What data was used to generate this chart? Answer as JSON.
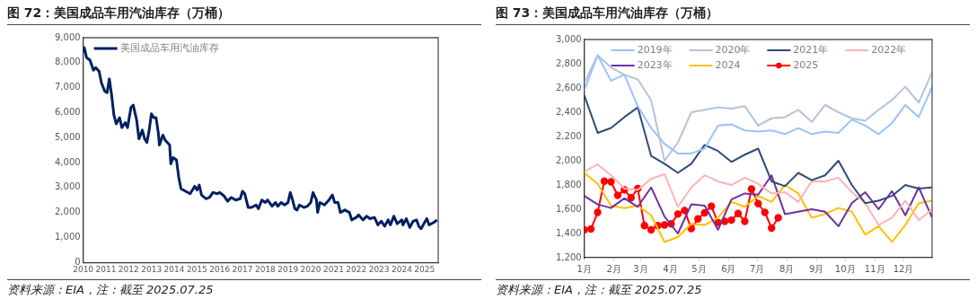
{
  "chart_data": [
    {
      "type": "line",
      "title": "图 72：美国成品车用汽油库存（万桶）",
      "annotations": [
        "资料来源：EIA，注：截至 2025.07.25"
      ],
      "legend": "top left",
      "xlim": [
        2010,
        2025.6
      ],
      "xticks": [
        2010,
        2011,
        2012,
        2013,
        2014,
        2015,
        2016,
        2017,
        2018,
        2019,
        2020,
        2021,
        2022,
        2023,
        2024,
        2025
      ],
      "ylim": [
        0,
        9000
      ],
      "yticks": [
        0,
        {
          "value": 1000,
          "label": "1,000"
        },
        {
          "value": 2000,
          "label": "2,000"
        },
        {
          "value": 3000,
          "label": "3,000"
        },
        {
          "value": 4000,
          "label": "4,000"
        },
        {
          "value": 5000,
          "label": "5,000"
        },
        {
          "value": 6000,
          "label": "6,000"
        },
        {
          "value": 7000,
          "label": "7,000"
        },
        {
          "value": 8000,
          "label": "8,000"
        },
        {
          "value": 9000,
          "label": "9,000"
        }
      ],
      "x": [
        2010.0,
        2010.05,
        2010.15,
        2010.3,
        2010.45,
        2010.55,
        2010.7,
        2010.8,
        2010.95,
        2011.05,
        2011.15,
        2011.25,
        2011.35,
        2011.45,
        2011.6,
        2011.7,
        2011.85,
        2011.95,
        2012.1,
        2012.2,
        2012.35,
        2012.45,
        2012.6,
        2012.7,
        2012.8,
        2012.9,
        2013.0,
        2013.1,
        2013.2,
        2013.3,
        2013.35,
        2013.5,
        2013.6,
        2013.7,
        2013.8,
        2013.85,
        2013.95,
        2014.1,
        2014.2,
        2014.3,
        2014.5,
        2014.7,
        2014.9,
        2015.0,
        2015.1,
        2015.2,
        2015.4,
        2015.55,
        2015.7,
        2015.9,
        2016.0,
        2016.2,
        2016.35,
        2016.5,
        2016.7,
        2016.9,
        2017.0,
        2017.1,
        2017.25,
        2017.4,
        2017.6,
        2017.7,
        2017.85,
        2018.0,
        2018.1,
        2018.3,
        2018.45,
        2018.55,
        2018.7,
        2018.85,
        2019.0,
        2019.1,
        2019.2,
        2019.3,
        2019.4,
        2019.5,
        2019.7,
        2019.85,
        2020.0,
        2020.1,
        2020.25,
        2020.3,
        2020.4,
        2020.6,
        2020.8,
        2020.95,
        2021.05,
        2021.2,
        2021.3,
        2021.5,
        2021.7,
        2021.8,
        2022.0,
        2022.1,
        2022.3,
        2022.45,
        2022.6,
        2022.8,
        2022.95,
        2023.1,
        2023.25,
        2023.4,
        2023.5,
        2023.65,
        2023.8,
        2024.0,
        2024.05,
        2024.2,
        2024.35,
        2024.5,
        2024.65,
        2024.75,
        2024.85,
        2025.0,
        2025.1,
        2025.2,
        2025.4,
        2025.55
      ],
      "series": [
        {
          "name": "美国成品车用汽油库存",
          "color": "#002060",
          "values": [
            8400,
            8600,
            8200,
            8100,
            7700,
            7800,
            7650,
            7200,
            6850,
            6800,
            7350,
            6700,
            5900,
            5550,
            5800,
            5400,
            5600,
            5400,
            6200,
            6300,
            5700,
            4950,
            5300,
            4950,
            4800,
            5300,
            5950,
            5800,
            5800,
            5200,
            4700,
            5100,
            4900,
            4800,
            4700,
            3950,
            4200,
            4100,
            3400,
            2950,
            2850,
            2750,
            3050,
            2900,
            3100,
            2700,
            2550,
            2600,
            2800,
            2750,
            2800,
            2650,
            2450,
            2600,
            2500,
            2550,
            2850,
            2750,
            2200,
            2200,
            2300,
            2150,
            2500,
            2400,
            2500,
            2250,
            2400,
            2250,
            2400,
            2300,
            2400,
            2800,
            2500,
            2150,
            2100,
            2300,
            2200,
            2250,
            2400,
            2800,
            2500,
            2000,
            2400,
            2300,
            2500,
            2700,
            2400,
            2400,
            2000,
            2100,
            2000,
            1700,
            1800,
            1900,
            1700,
            1850,
            1750,
            1800,
            1500,
            1650,
            1450,
            1700,
            1500,
            1850,
            1550,
            1700,
            1500,
            1750,
            1400,
            1650,
            1700,
            1450,
            1350,
            1600,
            1750,
            1500,
            1600,
            1700
          ]
        }
      ]
    },
    {
      "type": "line",
      "title": "图 73：美国成品车用汽油库存（万桶）",
      "annotations": [
        "资料来源：EIA，注：截至 2025.07.25"
      ],
      "legend": "top",
      "xlim": [
        "--01-01",
        "--12-31"
      ],
      "xticks": [
        {
          "value": "--01-01",
          "label": "1月"
        },
        {
          "value": "--02-01",
          "label": "2月"
        },
        {
          "value": "--03-01",
          "label": "3月"
        },
        {
          "value": "--04-01",
          "label": "4月"
        },
        {
          "value": "--05-01",
          "label": "5月"
        },
        {
          "value": "--06-01",
          "label": "6月"
        },
        {
          "value": "--07-01",
          "label": "7月"
        },
        {
          "value": "--08-01",
          "label": "8月"
        },
        {
          "value": "--09-01",
          "label": "9月"
        },
        {
          "value": "--10-01",
          "label": "10月"
        },
        {
          "value": "--11-01",
          "label": "11月"
        },
        {
          "value": "--12-01",
          "label": "12月"
        }
      ],
      "ylim": [
        1200,
        3000
      ],
      "yticks": [
        {
          "value": 1200,
          "label": "1,200"
        },
        {
          "value": 1400,
          "label": "1,400"
        },
        {
          "value": 1600,
          "label": "1,600"
        },
        {
          "value": 1800,
          "label": "1,800"
        },
        {
          "value": 2000,
          "label": "2,000"
        },
        {
          "value": 2200,
          "label": "2,200"
        },
        {
          "value": 2400,
          "label": "2,400"
        },
        {
          "value": 2600,
          "label": "2,600"
        },
        {
          "value": 2800,
          "label": "2,800"
        },
        {
          "value": 3000,
          "label": "3,000"
        }
      ],
      "x": [
        "--01-01",
        "--01-15",
        "--01-29",
        "--02-12",
        "--02-26",
        "--03-12",
        "--03-26",
        "--04-09",
        "--04-23",
        "--05-07",
        "--05-21",
        "--06-04",
        "--06-18",
        "--07-02",
        "--07-16",
        "--07-30",
        "--08-13",
        "--08-27",
        "--09-10",
        "--09-24",
        "--10-08",
        "--10-22",
        "--11-05",
        "--11-19",
        "--12-03",
        "--12-17",
        "--12-31"
      ],
      "series": [
        {
          "name": "2019年",
          "color": "#99c2ff",
          "values": [
            2580,
            2870,
            2660,
            2710,
            2450,
            2270,
            2140,
            2060,
            2060,
            2100,
            2290,
            2300,
            2250,
            2240,
            2250,
            2220,
            2270,
            2220,
            2240,
            2230,
            2340,
            2290,
            2220,
            2310,
            2460,
            2360,
            2610
          ]
        },
        {
          "name": "2020年",
          "color": "#b4c3d8",
          "values": [
            2640,
            2870,
            2770,
            2710,
            2670,
            2500,
            2000,
            2150,
            2400,
            2420,
            2440,
            2430,
            2450,
            2290,
            2350,
            2360,
            2420,
            2320,
            2460,
            2400,
            2350,
            2330,
            2420,
            2500,
            2610,
            2480,
            2730
          ]
        },
        {
          "name": "2021年",
          "color": "#2f4c78",
          "values": [
            2540,
            2230,
            2270,
            2360,
            2440,
            2040,
            1975,
            1900,
            1975,
            2130,
            2080,
            1990,
            2050,
            2100,
            1830,
            1790,
            1900,
            1840,
            1880,
            2000,
            1800,
            1650,
            1670,
            1710,
            1800,
            1770,
            1780
          ]
        },
        {
          "name": "2022年",
          "color": "#ffb3b3",
          "values": [
            1910,
            1970,
            1880,
            1770,
            1760,
            1850,
            1890,
            1620,
            1780,
            1880,
            1830,
            1800,
            1860,
            1810,
            1730,
            1740,
            1660,
            1830,
            1830,
            1860,
            1740,
            1650,
            1470,
            1530,
            1670,
            1510,
            1600
          ]
        },
        {
          "name": "2023年",
          "color": "#7030a0",
          "values": [
            1710,
            1640,
            1610,
            1690,
            1620,
            1780,
            1540,
            1400,
            1640,
            1630,
            1430,
            1680,
            1730,
            1720,
            1880,
            1560,
            1580,
            1600,
            1580,
            1460,
            1650,
            1740,
            1600,
            1750,
            1550,
            1780,
            1530
          ]
        },
        {
          "name": "2024",
          "color": "#ffc000",
          "values": [
            1900,
            1810,
            1630,
            1610,
            1630,
            1550,
            1330,
            1370,
            1480,
            1470,
            1530,
            1660,
            1620,
            1710,
            1660,
            1800,
            1730,
            1530,
            1560,
            1610,
            1580,
            1390,
            1460,
            1330,
            1470,
            1650,
            1670
          ]
        },
        {
          "name": "2025",
          "color": "#ff0000",
          "marker": "circle",
          "x": [
            "--01-01",
            "--01-08",
            "--01-15",
            "--01-22",
            "--01-29",
            "--02-05",
            "--02-12",
            "--02-19",
            "--02-26",
            "--03-05",
            "--03-12",
            "--03-19",
            "--03-26",
            "--04-02",
            "--04-09",
            "--04-16",
            "--04-23",
            "--04-30",
            "--05-07",
            "--05-14",
            "--05-21",
            "--05-28",
            "--06-04",
            "--06-11",
            "--06-18",
            "--06-25",
            "--07-02",
            "--07-09",
            "--07-16",
            "--07-23"
          ],
          "values": [
            1430,
            1437,
            1574,
            1832,
            1826,
            1715,
            1760,
            1695,
            1770,
            1465,
            1430,
            1465,
            1470,
            1480,
            1560,
            1590,
            1440,
            1520,
            1570,
            1625,
            1490,
            1500,
            1510,
            1565,
            1500,
            1767,
            1646,
            1574,
            1445,
            1530
          ]
        }
      ]
    }
  ]
}
